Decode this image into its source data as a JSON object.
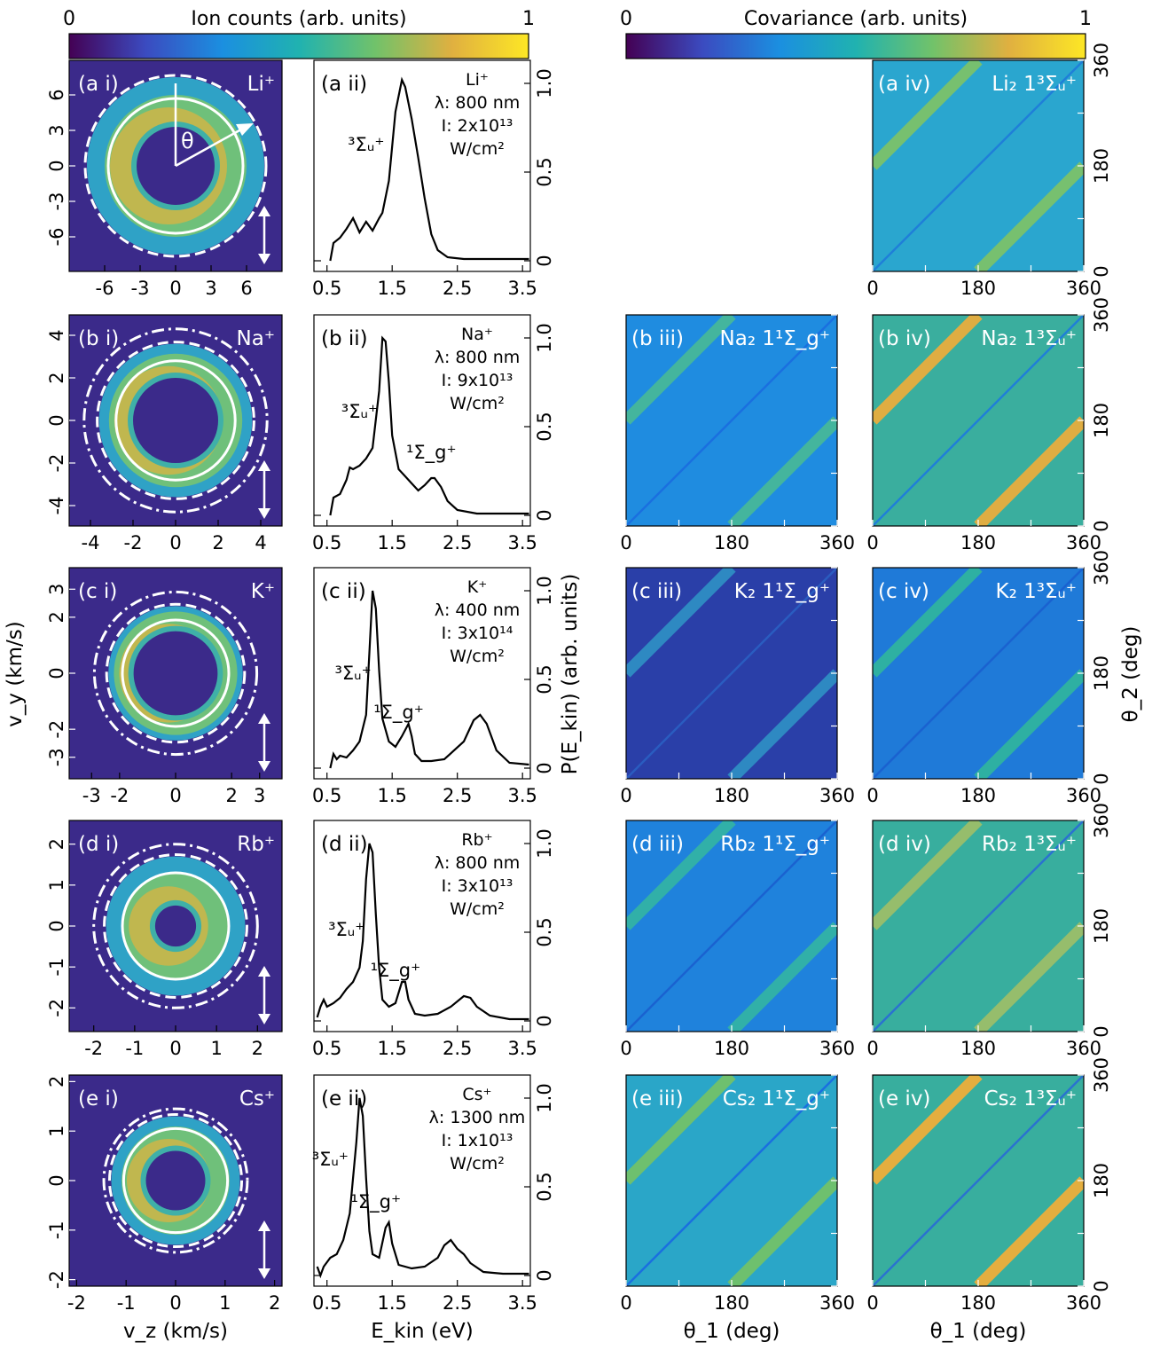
{
  "colorbars": {
    "ion": {
      "label": "Ion counts (arb. units)",
      "min": "0",
      "max": "1"
    },
    "cov": {
      "label": "Covariance (arb. units)",
      "min": "0",
      "max": "1"
    }
  },
  "colormap": [
    "#440154",
    "#3b4bc0",
    "#1b8fe0",
    "#20b2b0",
    "#71c26a",
    "#e0b040",
    "#fde725"
  ],
  "axes": {
    "vy_label": "v_y (km/s)",
    "vz_label": "v_z (km/s)",
    "ekin_label": "E_kin (eV)",
    "p_label": "P(E_kin) (arb. units)",
    "theta1_label": "θ_1 (deg)",
    "theta2_label": "θ_2 (deg)",
    "theta_symbol": "θ",
    "spec_x_ticks": [
      "0.5",
      "1.5",
      "2.5",
      "3.5"
    ],
    "spec_y_ticks": [
      "0",
      "0.5",
      "1.0"
    ],
    "cov_ticks": [
      "0",
      "180",
      "360"
    ]
  },
  "rows": [
    {
      "id": "a",
      "ion": "Li⁺",
      "label_i": "(a i)",
      "label_ii": "(a ii)",
      "label_iii": "",
      "label_iv": "(a iv)",
      "spec_ion": "Li⁺",
      "lambda": "λ: 800 nm",
      "intensity": "I: 2x10¹³",
      "unit": "W/cm²",
      "vticks": [
        "-6",
        "-3",
        "0",
        "3",
        "6"
      ],
      "vmax": 9,
      "ring": {
        "inner": 3.3,
        "outer": 7.5,
        "solid": 5.7,
        "dashed": 7.5,
        "dashdot": null
      },
      "peaks": [
        {
          "label": "³Σᵤ⁺",
          "e": 1.1,
          "v": 0.62
        }
      ],
      "spectrum": {
        "x": [
          0.55,
          0.6,
          0.7,
          0.8,
          0.9,
          0.95,
          1.0,
          1.1,
          1.2,
          1.3,
          1.35,
          1.45,
          1.55,
          1.65,
          1.7,
          1.8,
          1.9,
          2.0,
          2.1,
          2.2,
          2.35,
          2.6,
          3.0,
          3.6
        ],
        "y": [
          0.0,
          0.1,
          0.13,
          0.18,
          0.24,
          0.2,
          0.16,
          0.22,
          0.17,
          0.24,
          0.27,
          0.45,
          0.84,
          1.02,
          0.98,
          0.8,
          0.58,
          0.35,
          0.15,
          0.06,
          0.02,
          0.01,
          0.01,
          0.01
        ]
      },
      "cov_iii": null,
      "cov_iv": {
        "state": "Li₂ 1³Σᵤ⁺",
        "bg": "#2aa6cf",
        "band": "#7cc26a",
        "diag": "#1f7fd8"
      }
    },
    {
      "id": "b",
      "ion": "Na⁺",
      "label_i": "(b i)",
      "label_ii": "(b ii)",
      "label_iii": "(b iii)",
      "label_iv": "(b iv)",
      "spec_ion": "Na⁺",
      "lambda": "λ: 800 nm",
      "intensity": "I: 9x10¹³",
      "unit": "W/cm²",
      "vticks": [
        "-4",
        "-2",
        "0",
        "2",
        "4"
      ],
      "vmax": 5,
      "ring": {
        "inner": 2.0,
        "outer": 3.6,
        "solid": 2.8,
        "dashed": 3.6,
        "dashdot": 4.3
      },
      "peaks": [
        {
          "label": "³Σᵤ⁺",
          "e": 1.0,
          "v": 0.55
        },
        {
          "label": "¹Σ_g⁺",
          "e": 2.1,
          "v": 0.32
        }
      ],
      "spectrum": {
        "x": [
          0.55,
          0.6,
          0.7,
          0.8,
          0.85,
          0.9,
          1.0,
          1.1,
          1.2,
          1.3,
          1.35,
          1.4,
          1.45,
          1.5,
          1.6,
          1.7,
          1.8,
          1.9,
          2.0,
          2.1,
          2.15,
          2.25,
          2.35,
          2.5,
          2.8,
          3.2,
          3.6
        ],
        "y": [
          0.0,
          0.1,
          0.12,
          0.2,
          0.27,
          0.26,
          0.28,
          0.32,
          0.38,
          0.7,
          1.0,
          0.98,
          0.75,
          0.45,
          0.26,
          0.22,
          0.18,
          0.14,
          0.17,
          0.21,
          0.21,
          0.16,
          0.08,
          0.03,
          0.01,
          0.01,
          0.01
        ]
      },
      "cov_iii": {
        "state": "Na₂ 1¹Σ_g⁺",
        "bg": "#1f8ce0",
        "band": "#46b89a",
        "diag": "#1a6fe0"
      },
      "cov_iv": {
        "state": "Na₂ 1³Σᵤ⁺",
        "bg": "#3aae9e",
        "band": "#e8ad3e",
        "diag": "#1f7fd8"
      }
    },
    {
      "id": "c",
      "ion": "K⁺",
      "label_i": "(c i)",
      "label_ii": "(c ii)",
      "label_iii": "(c iii)",
      "label_iv": "(c iv)",
      "spec_ion": "K⁺",
      "lambda": "λ: 400 nm",
      "intensity": "I: 3x10¹⁴",
      "unit": "W/cm²",
      "vticks": [
        "-3",
        "-2",
        "0",
        "2",
        "3"
      ],
      "vmax": 3.8,
      "ring": {
        "inner": 1.5,
        "outer": 2.4,
        "solid": 1.9,
        "dashed": 2.4,
        "dashdot": 2.9
      },
      "peaks": [
        {
          "label": "³Σᵤ⁺",
          "e": 0.9,
          "v": 0.5
        },
        {
          "label": "¹Σ_g⁺",
          "e": 1.6,
          "v": 0.28
        }
      ],
      "spectrum": {
        "x": [
          0.55,
          0.6,
          0.65,
          0.7,
          0.8,
          0.9,
          1.0,
          1.1,
          1.15,
          1.2,
          1.25,
          1.3,
          1.35,
          1.45,
          1.55,
          1.65,
          1.75,
          1.8,
          1.85,
          1.95,
          2.1,
          2.3,
          2.6,
          2.75,
          2.85,
          2.95,
          3.1,
          3.3,
          3.6
        ],
        "y": [
          0.0,
          0.08,
          0.05,
          0.07,
          0.06,
          0.1,
          0.15,
          0.3,
          0.65,
          1.0,
          0.9,
          0.55,
          0.28,
          0.15,
          0.12,
          0.18,
          0.25,
          0.18,
          0.08,
          0.04,
          0.04,
          0.05,
          0.15,
          0.27,
          0.3,
          0.25,
          0.1,
          0.03,
          0.02
        ]
      },
      "cov_iii": {
        "state": "K₂ 1¹Σ_g⁺",
        "bg": "#2a3fa8",
        "band": "#2f8dc4",
        "diag": "#2a5cc0"
      },
      "cov_iv": {
        "state": "K₂ 1³Σᵤ⁺",
        "bg": "#1f7ad8",
        "band": "#2fb3a0",
        "diag": "#1a62d0"
      }
    },
    {
      "id": "d",
      "ion": "Rb⁺",
      "label_i": "(d i)",
      "label_ii": "(d ii)",
      "label_iii": "(d iii)",
      "label_iv": "(d iv)",
      "spec_ion": "Rb⁺",
      "lambda": "λ: 800 nm",
      "intensity": "I: 3x10¹³",
      "unit": "W/cm²",
      "vticks": [
        "-2",
        "-1",
        "0",
        "1",
        "2"
      ],
      "vmax": 2.6,
      "ring": {
        "inner": 0.5,
        "outer": 1.7,
        "solid": 1.3,
        "dashed": 1.7,
        "dashdot": 2.0
      },
      "peaks": [
        {
          "label": "³Σᵤ⁺",
          "e": 0.8,
          "v": 0.48
        },
        {
          "label": "¹Σ_g⁺",
          "e": 1.55,
          "v": 0.25
        }
      ],
      "spectrum": {
        "x": [
          0.35,
          0.4,
          0.45,
          0.5,
          0.6,
          0.7,
          0.8,
          0.9,
          1.0,
          1.05,
          1.1,
          1.15,
          1.2,
          1.25,
          1.3,
          1.35,
          1.45,
          1.55,
          1.65,
          1.7,
          1.75,
          1.85,
          2.0,
          2.2,
          2.4,
          2.6,
          2.7,
          2.8,
          3.0,
          3.3,
          3.6
        ],
        "y": [
          0.02,
          0.08,
          0.12,
          0.08,
          0.1,
          0.13,
          0.18,
          0.22,
          0.3,
          0.45,
          0.8,
          1.0,
          0.95,
          0.6,
          0.3,
          0.12,
          0.08,
          0.1,
          0.22,
          0.22,
          0.12,
          0.04,
          0.03,
          0.04,
          0.08,
          0.14,
          0.13,
          0.08,
          0.03,
          0.01,
          0.01
        ]
      },
      "cov_iii": {
        "state": "Rb₂ 1¹Σ_g⁺",
        "bg": "#1f82dc",
        "band": "#32b3a6",
        "diag": "#1a62d0"
      },
      "cov_iv": {
        "state": "Rb₂ 1³Σᵤ⁺",
        "bg": "#38ae9e",
        "band": "#9cbe6a",
        "diag": "#2a72d0"
      }
    },
    {
      "id": "e",
      "ion": "Cs⁺",
      "label_i": "(e i)",
      "label_ii": "(e ii)",
      "label_iii": "(e iii)",
      "label_iv": "(e iv)",
      "spec_ion": "Cs⁺",
      "lambda": "λ: 1300 nm",
      "intensity": "I: 1x10¹³",
      "unit": "W/cm²",
      "vticks": [
        "-2",
        "-1",
        "0",
        "1",
        "2"
      ],
      "vmax": 2.15,
      "ring": {
        "inner": 0.6,
        "outer": 1.3,
        "solid": 1.05,
        "dashed": 1.3,
        "dashdot": 1.45
      },
      "peaks": [
        {
          "label": "³Σᵤ⁺",
          "e": 0.55,
          "v": 0.62
        },
        {
          "label": "¹Σ_g⁺",
          "e": 1.25,
          "v": 0.38
        }
      ],
      "spectrum": {
        "x": [
          0.35,
          0.4,
          0.45,
          0.55,
          0.65,
          0.75,
          0.85,
          0.95,
          1.0,
          1.05,
          1.1,
          1.15,
          1.2,
          1.3,
          1.4,
          1.45,
          1.5,
          1.6,
          1.8,
          2.0,
          2.2,
          2.3,
          2.4,
          2.5,
          2.6,
          2.7,
          2.9,
          3.2,
          3.6
        ],
        "y": [
          0.05,
          0.0,
          0.05,
          0.1,
          0.12,
          0.2,
          0.35,
          0.75,
          1.0,
          0.9,
          0.55,
          0.25,
          0.12,
          0.1,
          0.27,
          0.3,
          0.18,
          0.06,
          0.04,
          0.05,
          0.1,
          0.17,
          0.2,
          0.15,
          0.12,
          0.07,
          0.02,
          0.01,
          0.01
        ]
      },
      "cov_iii": {
        "state": "Cs₂ 1¹Σ_g⁺",
        "bg": "#2aa6c8",
        "band": "#72c26a",
        "diag": "#1a6fe0"
      },
      "cov_iv": {
        "state": "Cs₂ 1³Σᵤ⁺",
        "bg": "#38ae9e",
        "band": "#eeae3a",
        "diag": "#2a72d0"
      }
    }
  ]
}
